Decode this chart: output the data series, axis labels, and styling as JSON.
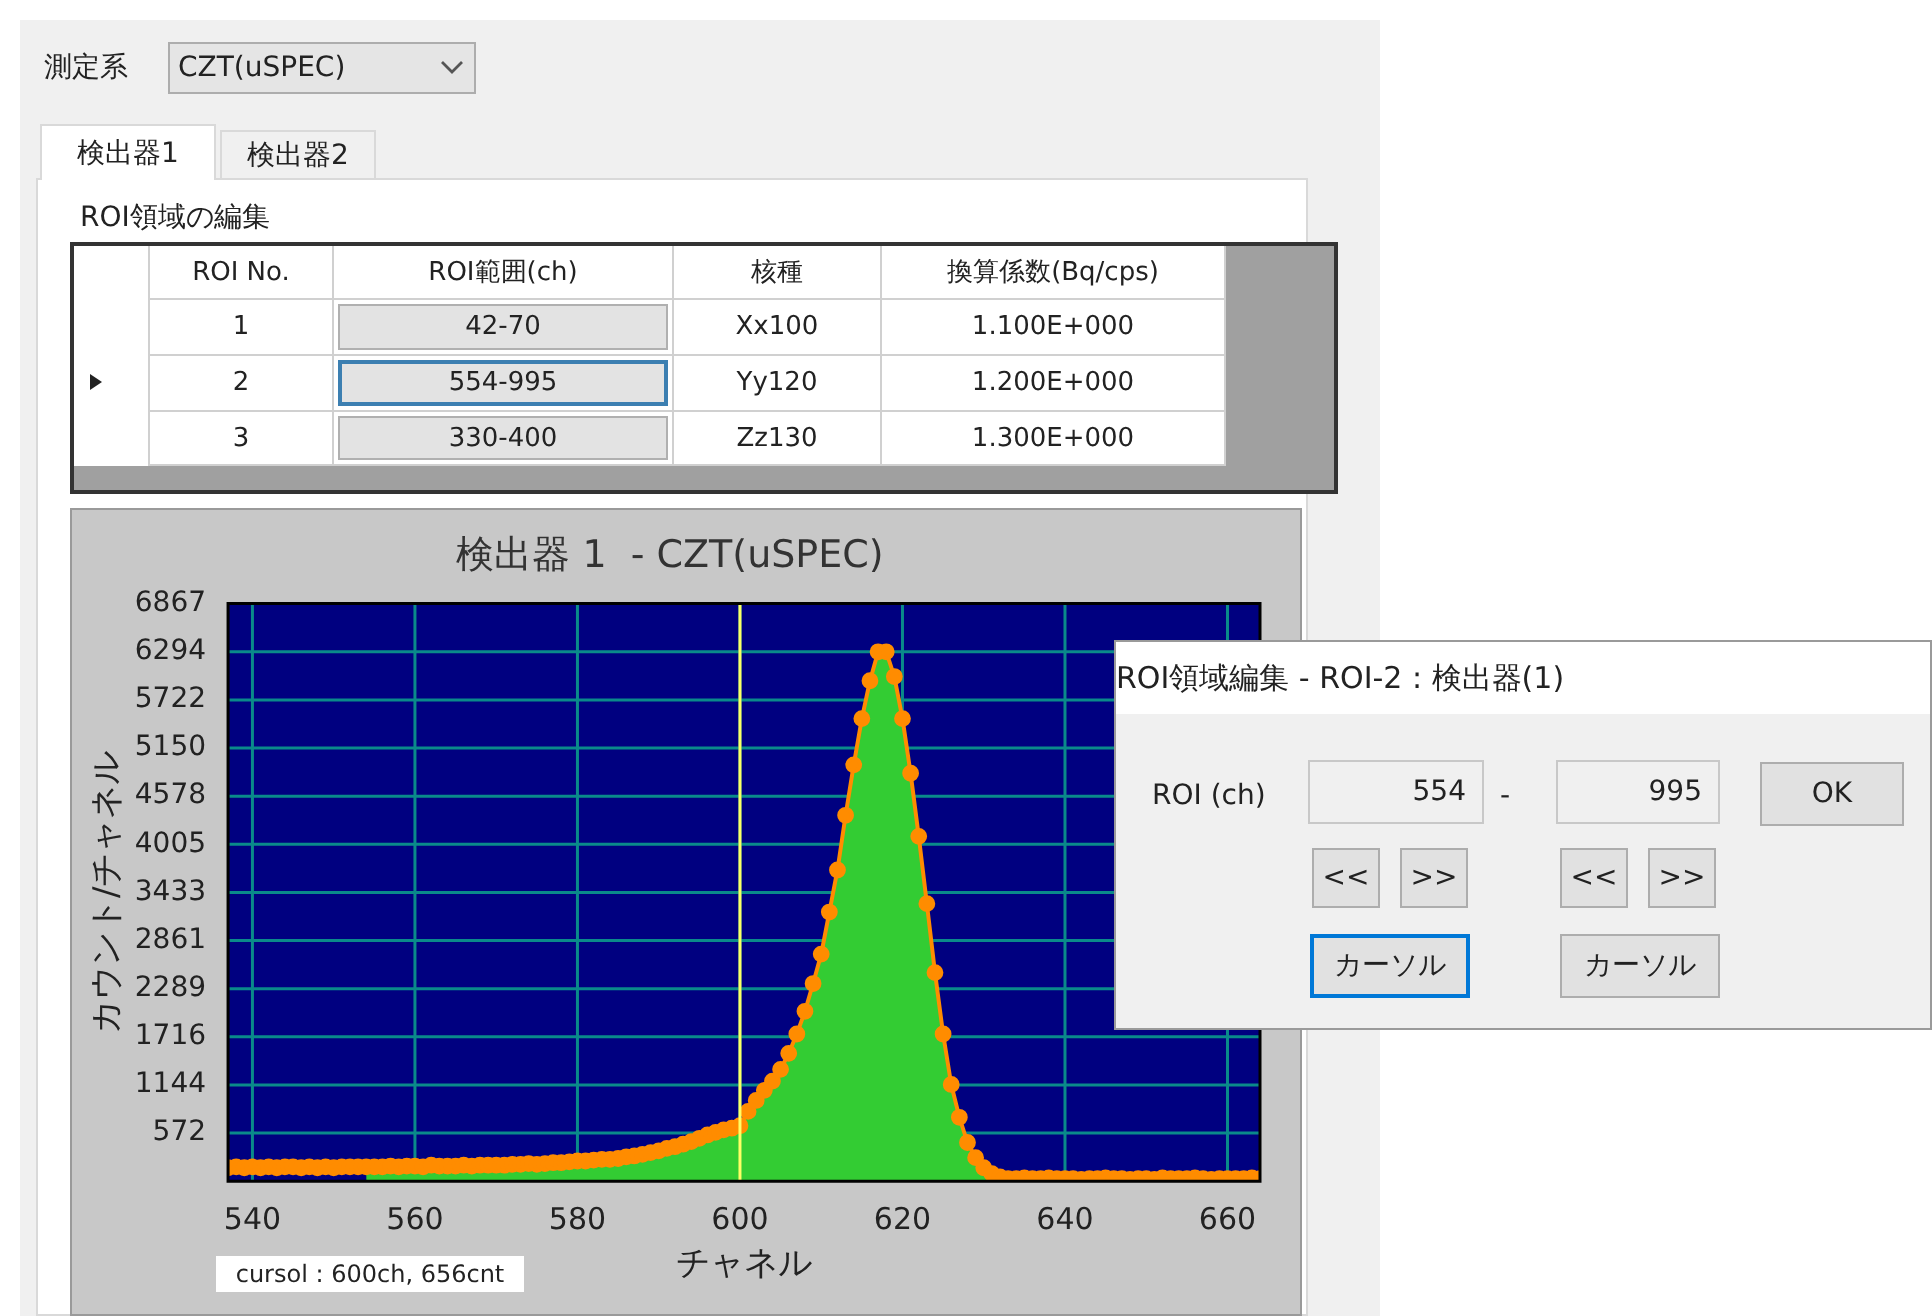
{
  "chart_data": {
    "type": "area",
    "title": "検出器 1  - CZT(uSPEC)",
    "xlabel": "チャネル",
    "ylabel": "カウント/チャネル",
    "xlim": [
      537,
      664
    ],
    "xticks": [
      540,
      560,
      580,
      600,
      620,
      640,
      660
    ],
    "ylim": [
      0,
      6867
    ],
    "yticks": [
      572,
      1144,
      1716,
      2289,
      2861,
      3433,
      4005,
      4578,
      5150,
      5722,
      6294,
      6867
    ],
    "grid": true,
    "legend": false,
    "ref_lines": [
      {
        "axis": "x",
        "value": 600,
        "color": "#ffff66"
      }
    ],
    "series": [
      {
        "color": "#33cc33",
        "x": [
          554,
          555,
          556,
          557,
          558,
          559,
          560,
          561,
          562,
          563,
          564,
          565,
          566,
          567,
          568,
          569,
          570,
          571,
          572,
          573,
          574,
          575,
          576,
          577,
          578,
          579,
          580,
          581,
          582,
          583,
          584,
          585,
          586,
          587,
          588,
          589,
          590,
          591,
          592,
          593,
          594,
          595,
          596,
          597,
          598,
          599,
          600,
          601,
          602,
          603,
          604,
          605,
          606,
          607,
          608,
          609,
          610,
          611,
          612,
          613,
          614,
          615,
          616,
          617,
          618,
          619,
          620,
          621,
          622,
          623,
          624,
          625,
          626,
          627,
          628,
          629,
          630,
          631
        ],
        "values": [
          170,
          170,
          170,
          180,
          170,
          180,
          180,
          170,
          190,
          180,
          180,
          180,
          190,
          180,
          190,
          190,
          190,
          190,
          200,
          200,
          210,
          200,
          210,
          220,
          220,
          230,
          240,
          240,
          250,
          260,
          260,
          270,
          290,
          300,
          320,
          340,
          360,
          390,
          410,
          440,
          470,
          510,
          550,
          580,
          610,
          630,
          660,
          830,
          960,
          1080,
          1190,
          1330,
          1520,
          1750,
          2020,
          2350,
          2700,
          3200,
          3700,
          4350,
          4950,
          5500,
          5950,
          6294,
          6294,
          6000,
          5500,
          4850,
          4100,
          3300,
          2480,
          1750,
          1150,
          760,
          460,
          280,
          160,
          90
        ]
      },
      {
        "type": "line",
        "color": "#ff8c00",
        "marker": "circle",
        "x": [
          537,
          538,
          539,
          540,
          541,
          542,
          543,
          544,
          545,
          546,
          547,
          548,
          549,
          550,
          551,
          552,
          553,
          554,
          555,
          556,
          557,
          558,
          559,
          560,
          561,
          562,
          563,
          564,
          565,
          566,
          567,
          568,
          569,
          570,
          571,
          572,
          573,
          574,
          575,
          576,
          577,
          578,
          579,
          580,
          581,
          582,
          583,
          584,
          585,
          586,
          587,
          588,
          589,
          590,
          591,
          592,
          593,
          594,
          595,
          596,
          597,
          598,
          599,
          600,
          601,
          602,
          603,
          604,
          605,
          606,
          607,
          608,
          609,
          610,
          611,
          612,
          613,
          614,
          615,
          616,
          617,
          618,
          619,
          620,
          621,
          622,
          623,
          624,
          625,
          626,
          627,
          628,
          629,
          630,
          631,
          632,
          633,
          634,
          635,
          636,
          637,
          638,
          639,
          640,
          641,
          642,
          643,
          644,
          645,
          646,
          647,
          648,
          649,
          650,
          651,
          652,
          653,
          654,
          655,
          656,
          657,
          658,
          659,
          660,
          661,
          662,
          663,
          664
        ],
        "values": [
          160,
          170,
          160,
          170,
          160,
          170,
          160,
          170,
          170,
          160,
          170,
          160,
          170,
          160,
          170,
          170,
          170,
          170,
          170,
          170,
          180,
          170,
          180,
          180,
          170,
          190,
          180,
          180,
          180,
          190,
          180,
          190,
          190,
          190,
          190,
          200,
          200,
          210,
          200,
          210,
          220,
          220,
          230,
          240,
          240,
          250,
          260,
          260,
          270,
          290,
          300,
          320,
          340,
          360,
          390,
          410,
          440,
          470,
          510,
          550,
          580,
          610,
          630,
          660,
          830,
          960,
          1080,
          1190,
          1330,
          1520,
          1750,
          2020,
          2350,
          2700,
          3200,
          3700,
          4350,
          4950,
          5500,
          5950,
          6294,
          6294,
          6000,
          5500,
          4850,
          4100,
          3300,
          2480,
          1750,
          1150,
          760,
          460,
          280,
          160,
          90,
          50,
          30,
          30,
          40,
          30,
          30,
          40,
          30,
          30,
          30,
          20,
          30,
          30,
          40,
          30,
          30,
          20,
          30,
          30,
          20,
          40,
          30,
          30,
          30,
          40,
          30,
          20,
          30,
          30,
          30,
          30,
          40,
          30
        ]
      }
    ],
    "annotations": [
      "測定系",
      "CZT(uSPEC)",
      "検出器1",
      "検出器2",
      "ROI領域の編集",
      "ROI No.",
      "ROI範囲(ch)",
      "核種",
      "換算係数(Bq/cps)",
      "1",
      "42-70",
      "Xx100",
      "1.100E+000",
      "2",
      "554-995",
      "Yy120",
      "1.200E+000",
      "3",
      "330-400",
      "Zz130",
      "1.300E+000",
      "cursol : 600ch, 656cnt",
      "ROI領域編集 - ROI-2 : 検出器(1)",
      "ROI (ch)",
      "554",
      "-",
      "995",
      "OK",
      "<<",
      ">>",
      "<<",
      ">>",
      "カーソル",
      "カーソル"
    ]
  }
}
